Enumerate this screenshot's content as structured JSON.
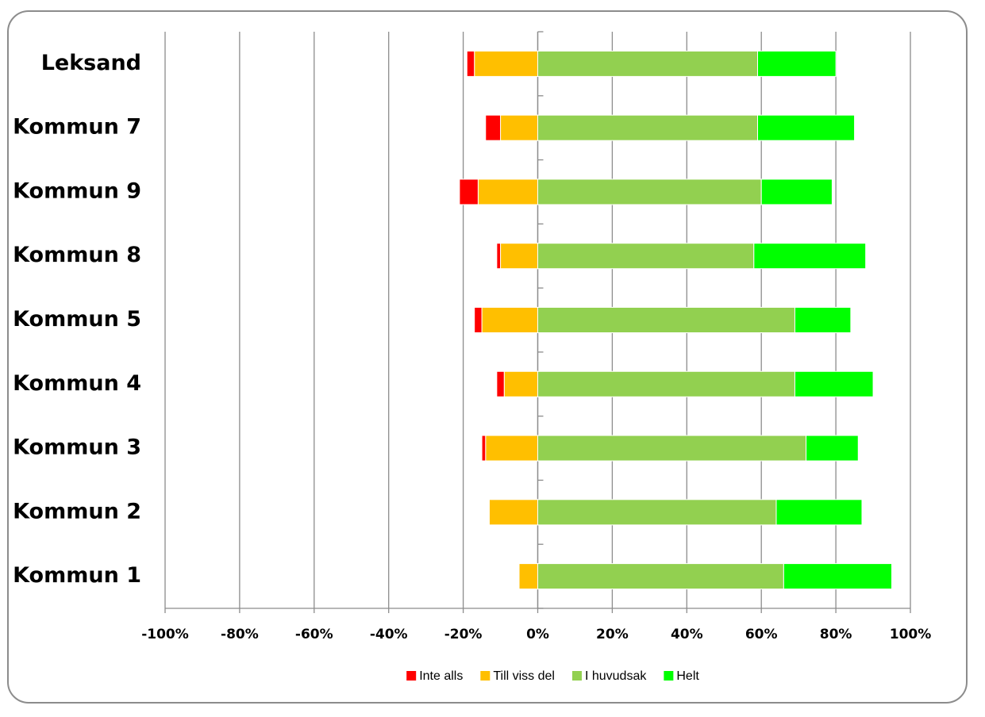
{
  "chart_data": {
    "type": "diverging-bar",
    "categories": [
      "Leksand",
      "Kommun 7",
      "Kommun 9",
      "Kommun 8",
      "Kommun 5",
      "Kommun 4",
      "Kommun 3",
      "Kommun 2",
      "Kommun 1"
    ],
    "series": [
      {
        "name": "Inte alls",
        "color": "#ff0000",
        "values": [
          -2,
          -4,
          -5,
          -1,
          -2,
          -2,
          -1,
          0,
          0
        ]
      },
      {
        "name": "Till viss del",
        "color": "#ffbf00",
        "values": [
          -17,
          -10,
          -16,
          -10,
          -15,
          -9,
          -14,
          -13,
          -5
        ]
      },
      {
        "name": "I huvudsak",
        "color": "#92d050",
        "values": [
          59,
          59,
          60,
          58,
          69,
          69,
          72,
          64,
          66
        ]
      },
      {
        "name": "Helt",
        "color": "#00ff00",
        "values": [
          21,
          26,
          19,
          30,
          15,
          21,
          14,
          23,
          29
        ]
      }
    ],
    "xlim": [
      -100,
      100
    ],
    "xticks": [
      {
        "value": -100,
        "label": "-100%"
      },
      {
        "value": -80,
        "label": "-80%"
      },
      {
        "value": -60,
        "label": "-60%"
      },
      {
        "value": -40,
        "label": "-40%"
      },
      {
        "value": -20,
        "label": "-20%"
      },
      {
        "value": 0,
        "label": "0%"
      },
      {
        "value": 20,
        "label": "20%"
      },
      {
        "value": 40,
        "label": "40%"
      },
      {
        "value": 60,
        "label": "60%"
      },
      {
        "value": 80,
        "label": "80%"
      },
      {
        "value": 100,
        "label": "100%"
      }
    ],
    "grid": true,
    "legend": "bottom"
  }
}
